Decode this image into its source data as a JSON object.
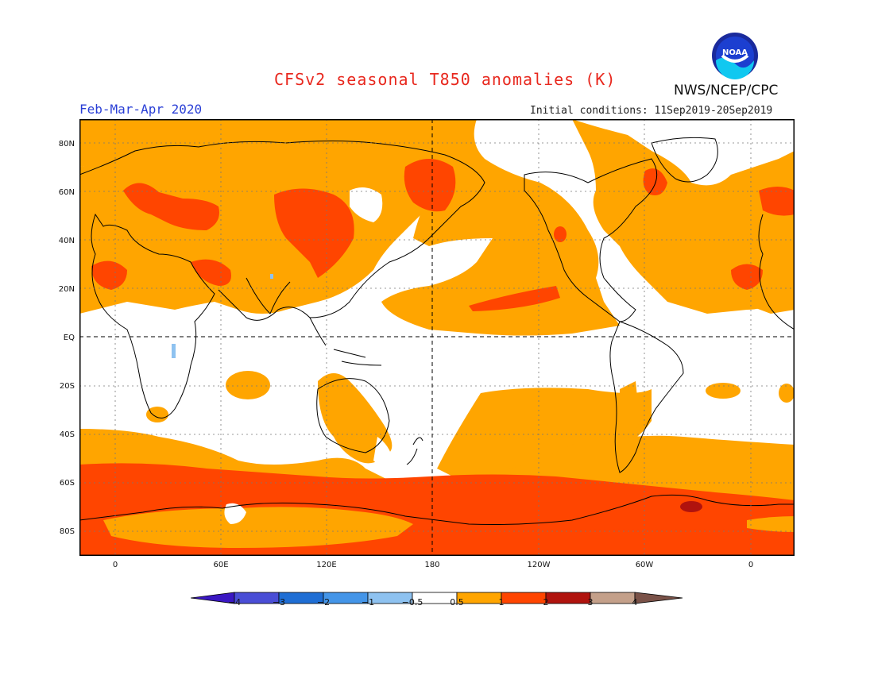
{
  "title": "CFSv2 seasonal T850 anomalies (K)",
  "season": "Feb-Mar-Apr 2020",
  "initial_conditions": "Initial conditions: 11Sep2019-20Sep2019",
  "agency": "NWS/NCEP/CPC",
  "logo_text": "NOAA",
  "colors": {
    "title": "#e8281e",
    "season": "#2a3fd6",
    "white": "#ffffff",
    "orange": "#ffa500",
    "red_orange": "#ff4500",
    "dark_red": "#b0130e",
    "tan": "#c4a08a",
    "brown": "#7a5248",
    "light_blue": "#8ec2f0"
  },
  "lat_labels": [
    "80N",
    "60N",
    "40N",
    "20N",
    "EQ",
    "20S",
    "40S",
    "60S",
    "80S"
  ],
  "lon_labels": [
    "0",
    "60E",
    "120E",
    "180",
    "120W",
    "60W",
    "0"
  ],
  "colorbar": {
    "bins": [
      {
        "color": "#3a17c2"
      },
      {
        "color": "#4a4ed6"
      },
      {
        "color": "#1f6ed4"
      },
      {
        "color": "#4495e8"
      },
      {
        "color": "#8ec2f0"
      },
      {
        "color": "#ffffff"
      },
      {
        "color": "#ffa500"
      },
      {
        "color": "#ff4500"
      },
      {
        "color": "#b0130e"
      },
      {
        "color": "#c4a08a"
      },
      {
        "color": "#7a5248"
      }
    ],
    "labels": [
      "−4",
      "−3",
      "−2",
      "−1",
      "−0.5",
      "0.5",
      "1",
      "2",
      "3",
      "4"
    ]
  }
}
